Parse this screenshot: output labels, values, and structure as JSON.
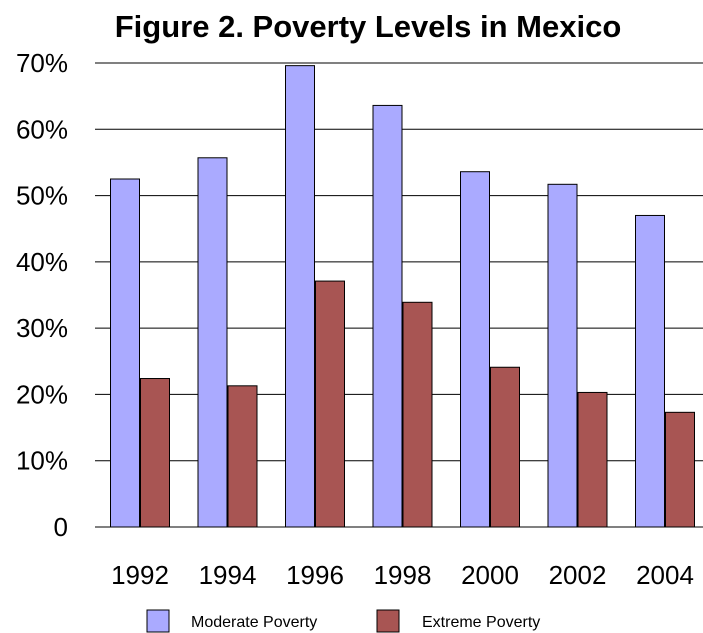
{
  "chart_data": {
    "type": "bar",
    "title": "Figure 2. Poverty Levels in Mexico",
    "xlabel": "",
    "ylabel": "",
    "categories": [
      "1992",
      "1994",
      "1996",
      "1998",
      "2000",
      "2002",
      "2004"
    ],
    "series": [
      {
        "name": "Moderate Poverty",
        "color": "#aaaaff",
        "values": [
          52.5,
          55.7,
          69.6,
          63.6,
          53.6,
          51.7,
          47.0
        ]
      },
      {
        "name": "Extreme Poverty",
        "color": "#a85553",
        "values": [
          22.4,
          21.3,
          37.1,
          33.9,
          24.1,
          20.3,
          17.3
        ]
      }
    ],
    "ylim": [
      0,
      70
    ],
    "yticks": [
      {
        "value": 0,
        "label": "0"
      },
      {
        "value": 10,
        "label": "10%"
      },
      {
        "value": 20,
        "label": "20%"
      },
      {
        "value": 30,
        "label": "30%"
      },
      {
        "value": 40,
        "label": "40%"
      },
      {
        "value": 50,
        "label": "50%"
      },
      {
        "value": 60,
        "label": "60%"
      },
      {
        "value": 70,
        "label": "70%"
      }
    ],
    "grid": true,
    "legend": "bottom"
  }
}
